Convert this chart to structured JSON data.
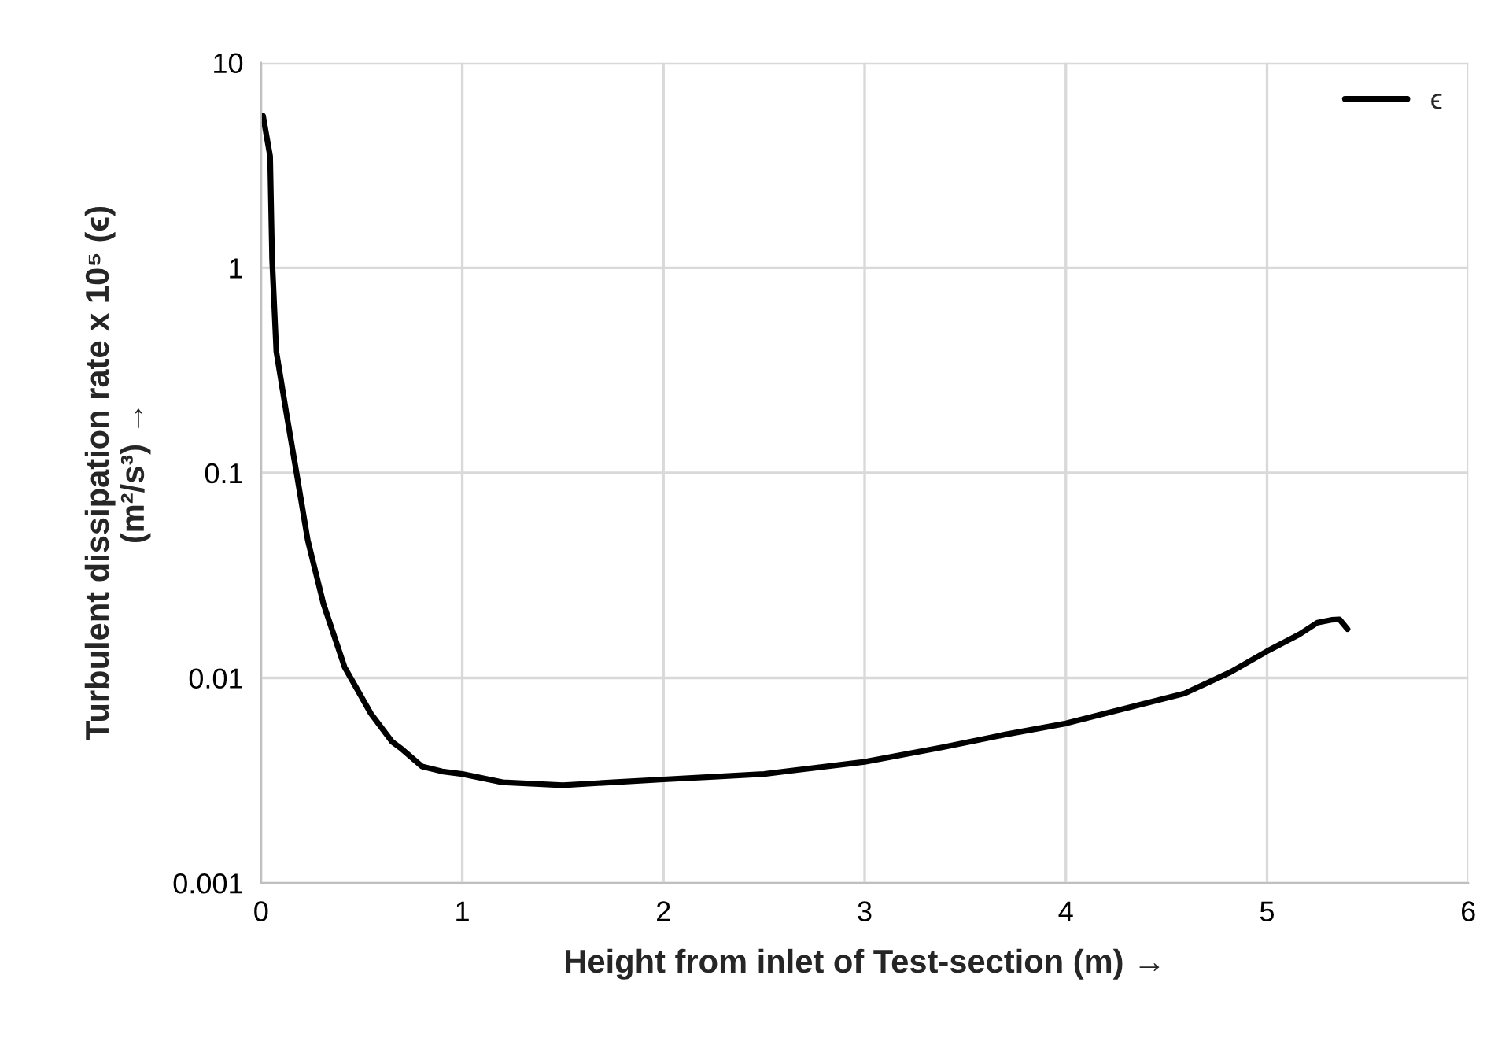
{
  "chart_data": {
    "type": "line",
    "xlabel": "Height from inlet of Test-section (m) →",
    "ylabel": "Turbulent dissipation rate x 10⁵ (ϵ)\n(m²/s³) →",
    "series": [
      {
        "name": "ϵ",
        "color": "#000000",
        "x": [
          0.01,
          0.045,
          0.055,
          0.076,
          0.128,
          0.18,
          0.232,
          0.31,
          0.415,
          0.546,
          0.65,
          0.7,
          0.8,
          0.9,
          1.0,
          1.2,
          1.5,
          1.75,
          2.0,
          2.25,
          2.5,
          3.0,
          3.39,
          3.7,
          4.0,
          4.59,
          4.82,
          5.0,
          5.16,
          5.25,
          5.32,
          5.36,
          5.4
        ],
        "values": [
          5.5,
          3.5,
          1.1,
          0.39,
          0.19,
          0.095,
          0.047,
          0.023,
          0.0113,
          0.0067,
          0.0049,
          0.0045,
          0.0037,
          0.0035,
          0.0034,
          0.0031,
          0.003,
          0.0031,
          0.0032,
          0.0033,
          0.0034,
          0.0039,
          0.0046,
          0.0053,
          0.006,
          0.0084,
          0.0107,
          0.0135,
          0.0163,
          0.0186,
          0.0192,
          0.0193,
          0.0173
        ]
      }
    ],
    "log": "y",
    "xlim": [
      0,
      6
    ],
    "ylim": [
      0.001,
      10
    ],
    "xticks": [
      0,
      1,
      2,
      3,
      4,
      5,
      6
    ],
    "yticks": [
      0.001,
      0.01,
      0.1,
      1,
      10
    ],
    "grid": true,
    "legend": "top right"
  }
}
